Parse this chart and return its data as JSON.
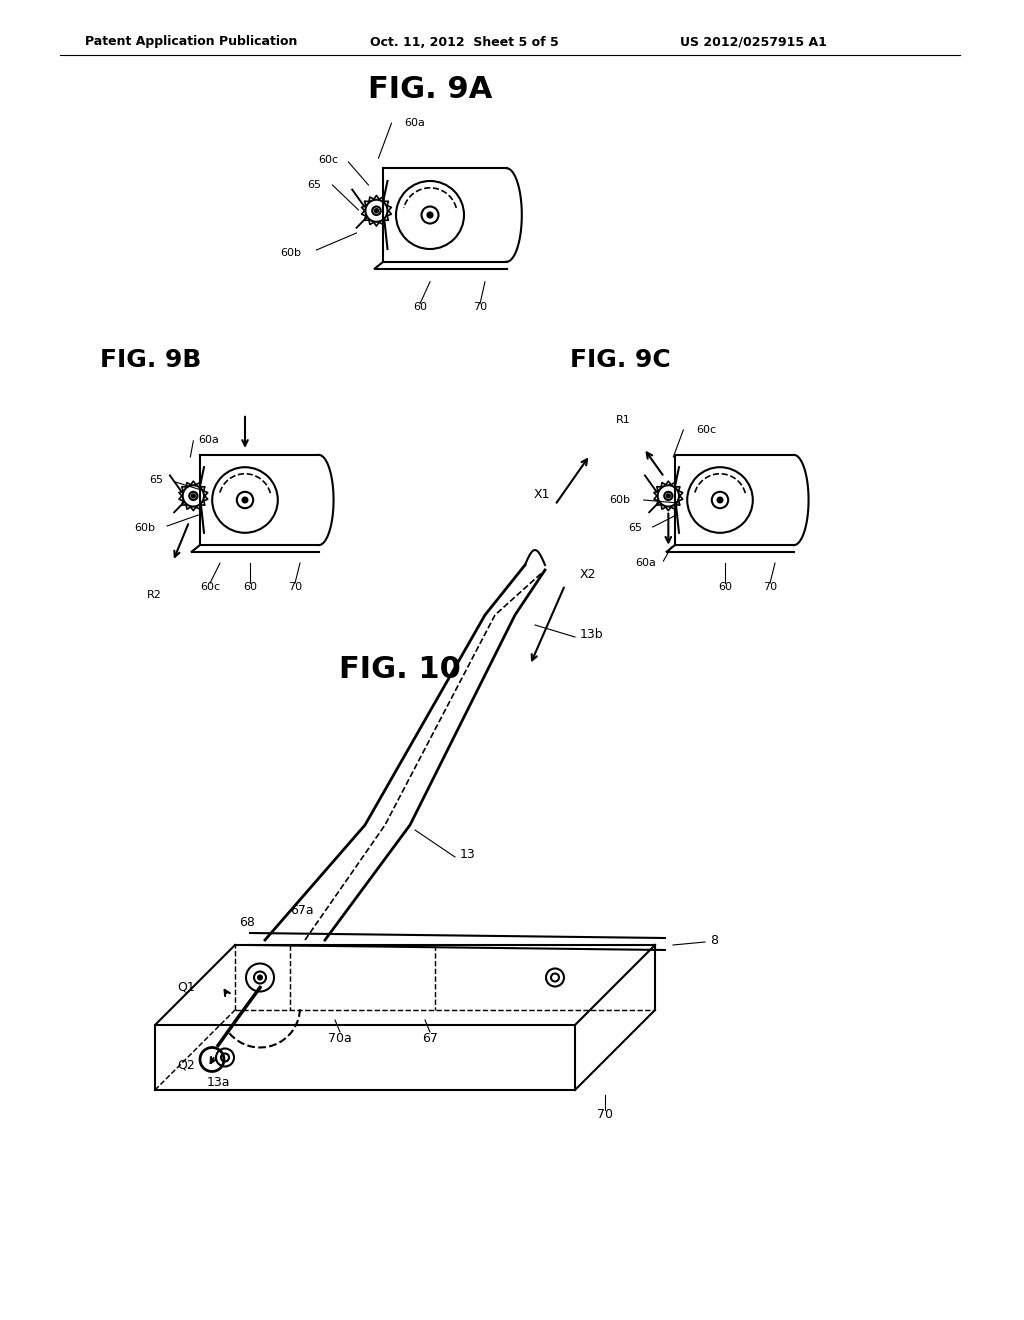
{
  "bg_color": "#ffffff",
  "text_color": "#000000",
  "line_color": "#000000",
  "header_left": "Patent Application Publication",
  "header_center": "Oct. 11, 2012  Sheet 5 of 5",
  "header_right": "US 2012/0257915 A1",
  "fig9a_title": "FIG. 9A",
  "fig9b_title": "FIG. 9B",
  "fig9c_title": "FIG. 9C",
  "fig10_title": "FIG. 10"
}
